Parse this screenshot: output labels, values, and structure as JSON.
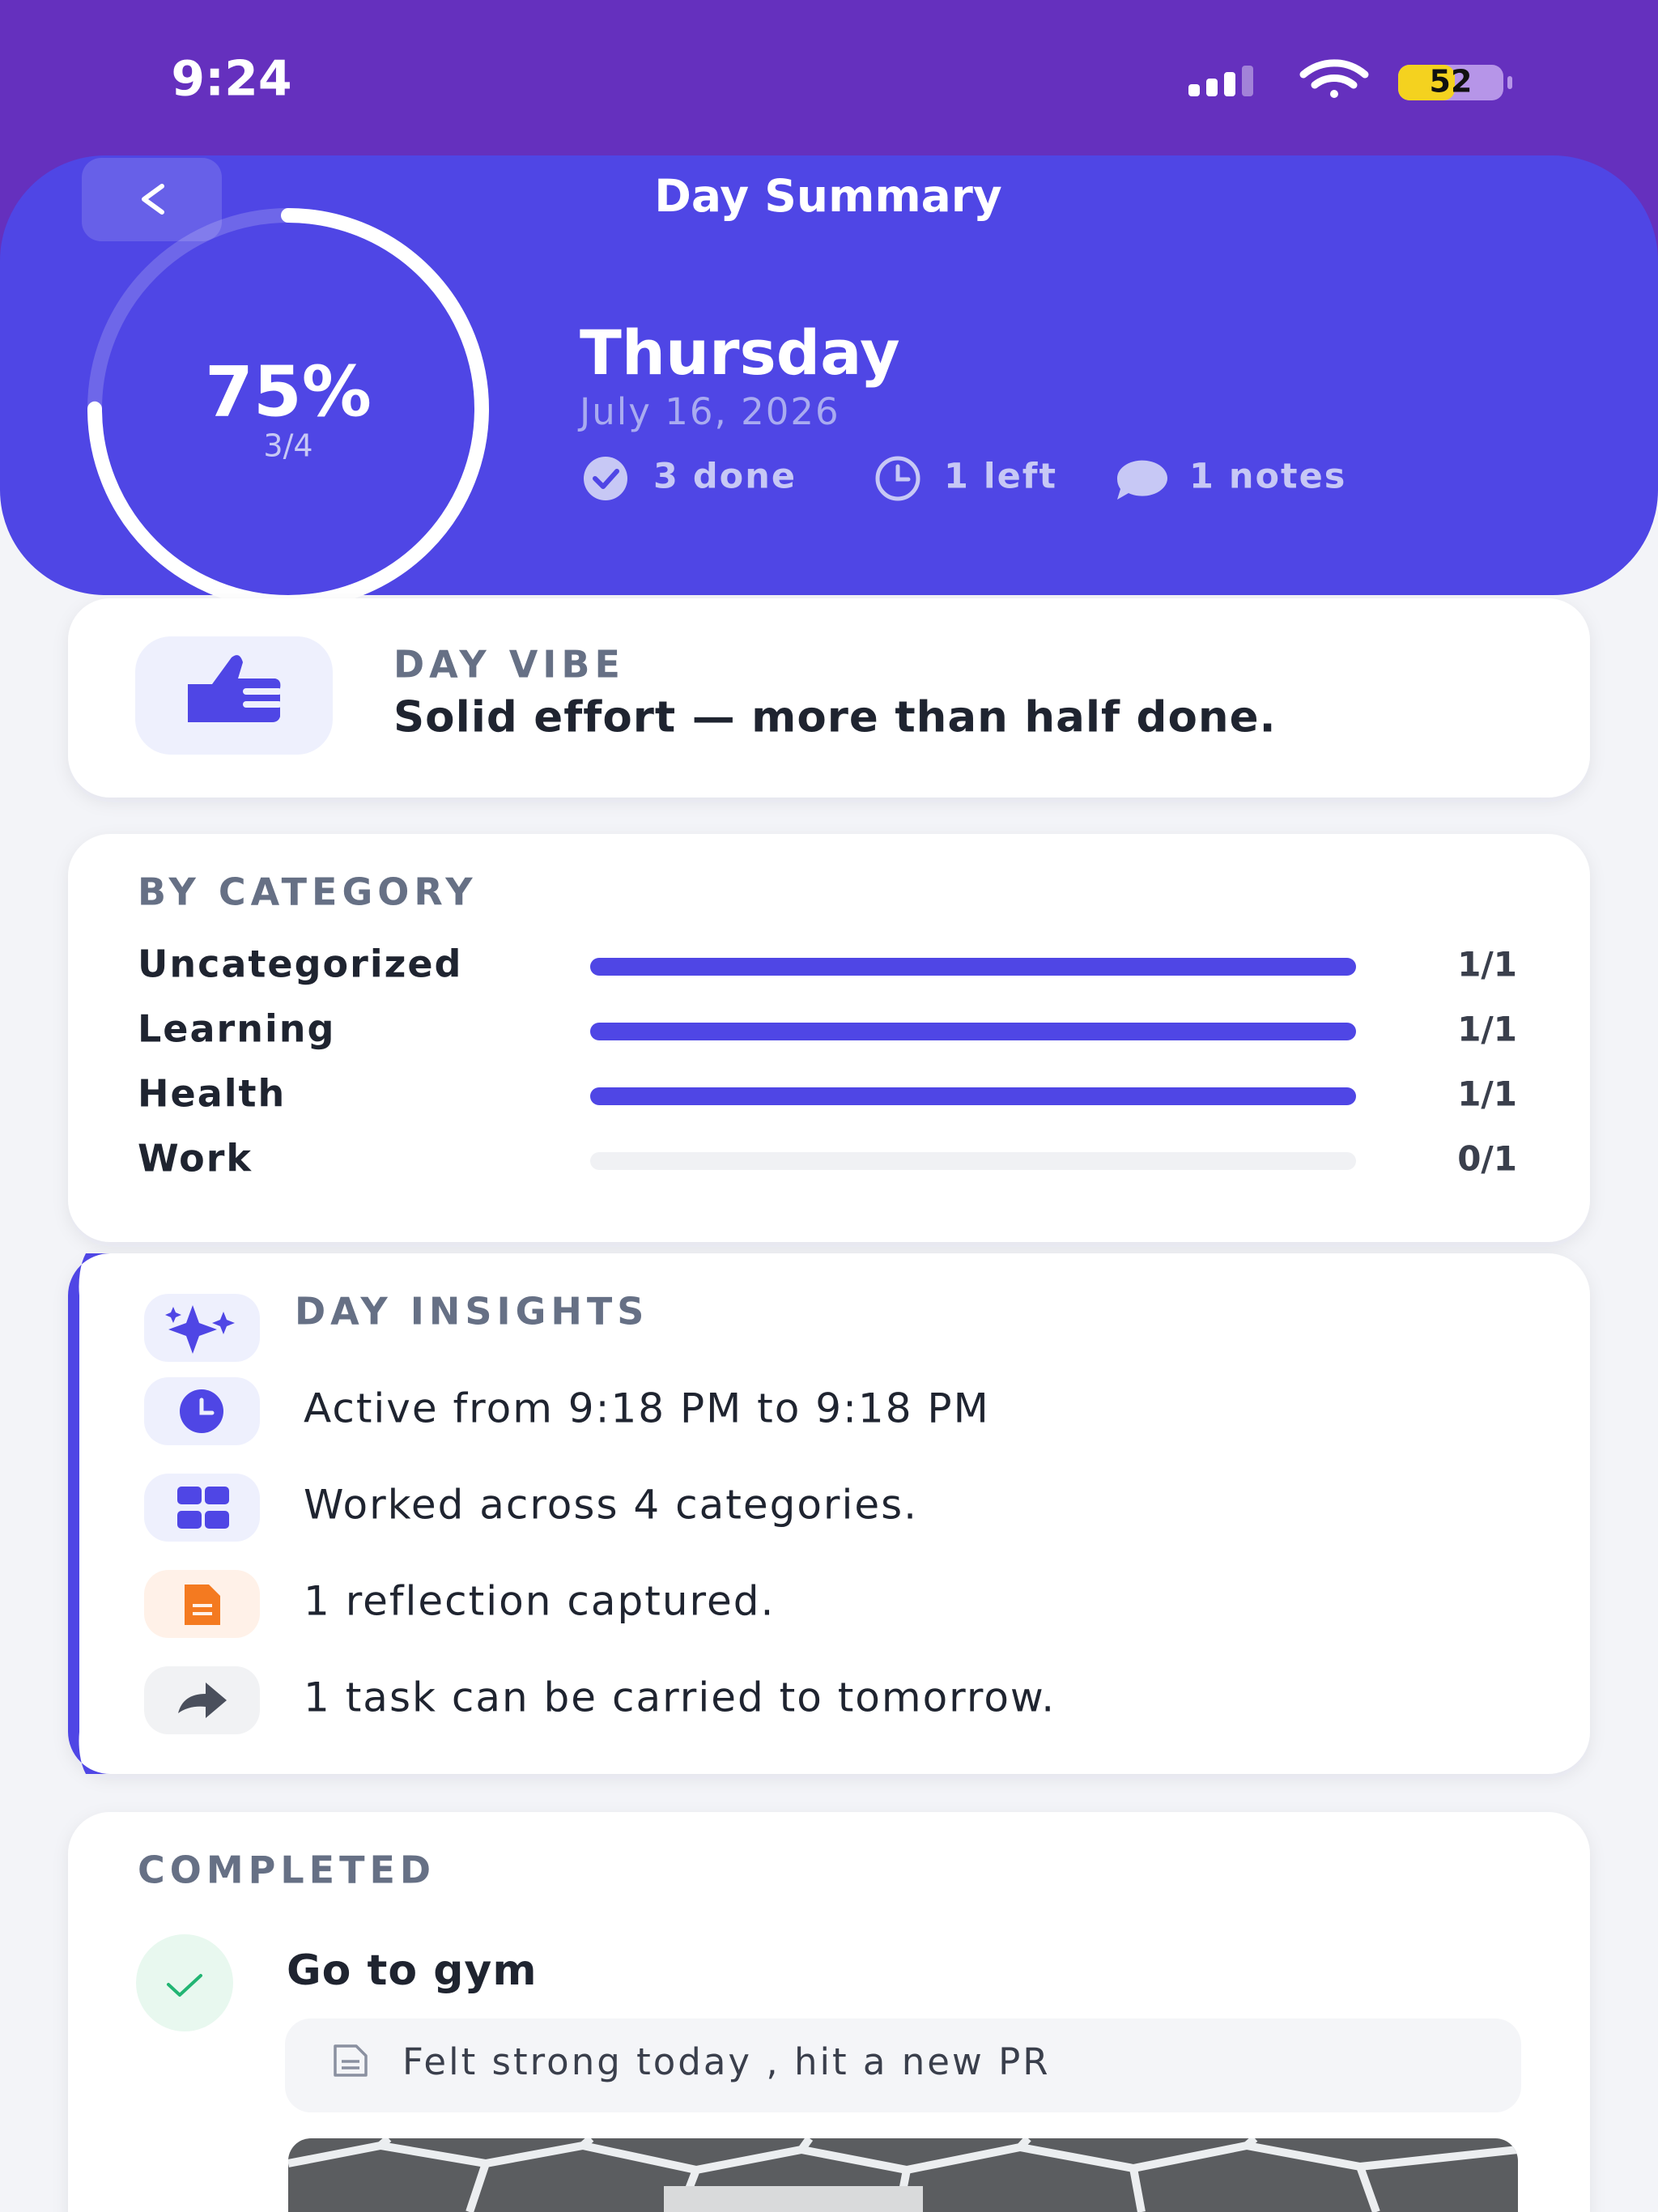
{
  "status_bar": {
    "time": "9:24",
    "battery": "52"
  },
  "header": {
    "title": "Day Summary",
    "progress": {
      "value": 75,
      "label": "75%"
    },
    "fraction": "3/4",
    "day": "Thursday",
    "date": "July 16, 2026",
    "stats": [
      "3 done",
      "1 left",
      "1 notes"
    ]
  },
  "vibe": {
    "label": "DAY VIBE",
    "text": "Solid effort — more than half done."
  },
  "by_category": {
    "title": "BY CATEGORY",
    "rows": [
      {
        "name": "Uncategorized",
        "done": 1,
        "total": 1,
        "label": "1/1"
      },
      {
        "name": "Learning",
        "done": 1,
        "total": 1,
        "label": "1/1"
      },
      {
        "name": "Health",
        "done": 1,
        "total": 1,
        "label": "1/1"
      },
      {
        "name": "Work",
        "done": 0,
        "total": 1,
        "label": "0/1"
      }
    ]
  },
  "insights": {
    "title": "DAY INSIGHTS",
    "items": [
      "Active from 9:18 PM to 9:18 PM",
      "Worked across 4 categories.",
      "1 reflection captured.",
      "1 task can be carried to tomorrow."
    ]
  },
  "completed": {
    "title": "COMPLETED",
    "tasks": [
      {
        "title": "Go to gym",
        "note": "Felt strong today , hit a new PR"
      }
    ]
  }
}
